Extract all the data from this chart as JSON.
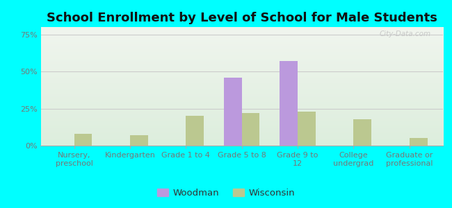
{
  "title": "School Enrollment by Level of School for Male Students",
  "categories": [
    "Nursery,\npreschool",
    "Kindergarten",
    "Grade 1 to 4",
    "Grade 5 to 8",
    "Grade 9 to\n12",
    "College\nundergrad",
    "Graduate or\nprofessional"
  ],
  "woodman": [
    0,
    0,
    0,
    46,
    57,
    0,
    0
  ],
  "wisconsin": [
    8,
    7,
    20,
    22,
    23,
    18,
    5
  ],
  "woodman_color": "#bb99dd",
  "wisconsin_color": "#bbc890",
  "background_outer": "#00ffff",
  "yticks": [
    0,
    25,
    50,
    75
  ],
  "ytick_labels": [
    "0%",
    "25%",
    "50%",
    "75%"
  ],
  "ylim": [
    0,
    80
  ],
  "bar_width": 0.32,
  "legend_labels": [
    "Woodman",
    "Wisconsin"
  ],
  "title_fontsize": 13,
  "tick_fontsize": 8,
  "legend_fontsize": 9.5,
  "grid_color": "#cccccc",
  "tick_color": "#777777",
  "bg_top": "#f0f5ee",
  "bg_bottom": "#ddeedd"
}
